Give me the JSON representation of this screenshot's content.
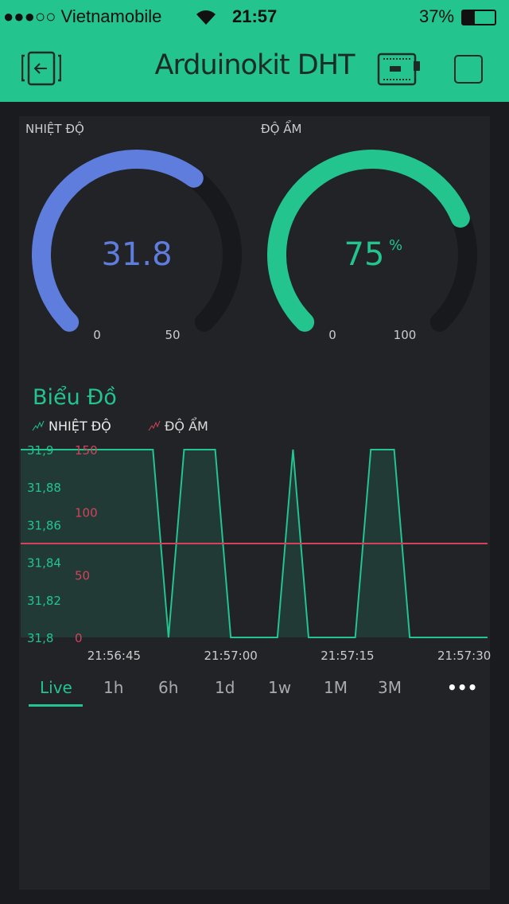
{
  "status_bar": {
    "carrier": "●●●○○ Vietnamobile",
    "time": "21:57",
    "battery": "37%",
    "battery_level": 0.37
  },
  "header": {
    "title": "Arduinokit DHT",
    "back_icon": "exit-icon",
    "device_icon": "board-icon",
    "square_icon": "square-icon"
  },
  "colors": {
    "accent": "#23c48e",
    "temp": "#5f7ddc",
    "humidity_line": "#d3435c",
    "panel": "#212327"
  },
  "gauges": [
    {
      "label": "NHIỆT ĐỘ",
      "value": 31.8,
      "value_text": "31.8",
      "unit": "",
      "min": 0,
      "max": 50,
      "min_text": "0",
      "max_text": "50",
      "color": "#5f7ddc"
    },
    {
      "label": "ĐỘ ẨM",
      "value": 75,
      "value_text": "75",
      "unit": "%",
      "min": 0,
      "max": 100,
      "min_text": "0",
      "max_text": "100",
      "color": "#23c48e"
    }
  ],
  "chart_data": {
    "type": "line",
    "title": "Biểu Đồ",
    "legend": [
      "NHIỆT ĐỘ",
      "ĐỘ ẨM"
    ],
    "x_ticks": [
      "21:56:45",
      "21:57:00",
      "21:57:15",
      "21:57:30"
    ],
    "xlim": [
      "21:56:33",
      "21:57:33"
    ],
    "series": [
      {
        "name": "NHIỆT ĐỘ",
        "color": "#23c48e",
        "ylim": [
          31.8,
          31.9
        ],
        "y_ticks": [
          "31,9",
          "31,88",
          "31,86",
          "31,84",
          "31,82",
          "31,8"
        ],
        "points": [
          [
            "21:56:33",
            31.9
          ],
          [
            "21:56:50",
            31.9
          ],
          [
            "21:56:52",
            31.8
          ],
          [
            "21:56:54",
            31.9
          ],
          [
            "21:56:58",
            31.9
          ],
          [
            "21:57:00",
            31.8
          ],
          [
            "21:57:06",
            31.8
          ],
          [
            "21:57:08",
            31.9
          ],
          [
            "21:57:10",
            31.8
          ],
          [
            "21:57:16",
            31.8
          ],
          [
            "21:57:18",
            31.9
          ],
          [
            "21:57:21",
            31.9
          ],
          [
            "21:57:23",
            31.8
          ],
          [
            "21:57:33",
            31.8
          ]
        ]
      },
      {
        "name": "ĐỘ ẨM",
        "color": "#d3435c",
        "ylim": [
          0,
          150
        ],
        "y_ticks": [
          "150",
          "100",
          "50",
          "0"
        ],
        "points": [
          [
            "21:56:33",
            75
          ],
          [
            "21:57:33",
            75
          ]
        ]
      }
    ]
  },
  "tabs": [
    "Live",
    "1h",
    "6h",
    "1d",
    "1w",
    "1M",
    "3M"
  ],
  "more_label": "•••"
}
